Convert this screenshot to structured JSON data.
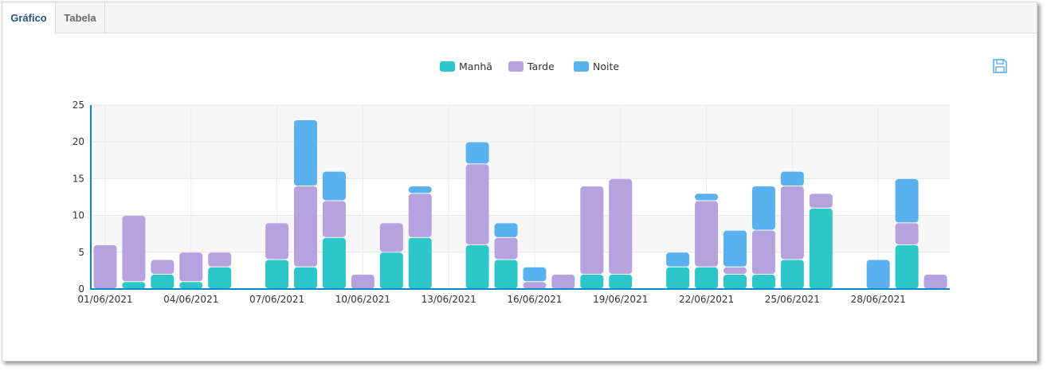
{
  "tabs": [
    {
      "label": "Gráfico",
      "active": true
    },
    {
      "label": "Tabela",
      "active": false
    }
  ],
  "toolbar": {
    "save_icon": "save-icon"
  },
  "chart_data": {
    "type": "bar",
    "stacked": true,
    "x": [
      "01/06/2021",
      "02/06/2021",
      "03/06/2021",
      "04/06/2021",
      "05/06/2021",
      "06/06/2021",
      "07/06/2021",
      "08/06/2021",
      "09/06/2021",
      "10/06/2021",
      "11/06/2021",
      "12/06/2021",
      "13/06/2021",
      "14/06/2021",
      "15/06/2021",
      "16/06/2021",
      "17/06/2021",
      "18/06/2021",
      "19/06/2021",
      "20/06/2021",
      "21/06/2021",
      "22/06/2021",
      "23/06/2021",
      "24/06/2021",
      "25/06/2021",
      "26/06/2021",
      "27/06/2021",
      "28/06/2021",
      "29/06/2021",
      "30/06/2021"
    ],
    "xticks": [
      "01/06/2021",
      "04/06/2021",
      "07/06/2021",
      "10/06/2021",
      "13/06/2021",
      "16/06/2021",
      "19/06/2021",
      "22/06/2021",
      "25/06/2021",
      "28/06/2021"
    ],
    "series": [
      {
        "name": "Manhã",
        "color": "#2ec7c9",
        "values": [
          0,
          1,
          2,
          1,
          3,
          0,
          4,
          3,
          7,
          0,
          5,
          7,
          0,
          6,
          4,
          0,
          0,
          2,
          2,
          0,
          3,
          3,
          2,
          2,
          4,
          11,
          0,
          0,
          6,
          0
        ]
      },
      {
        "name": "Tarde",
        "color": "#b6a2de",
        "values": [
          6,
          9,
          2,
          4,
          2,
          0,
          5,
          11,
          5,
          2,
          4,
          6,
          0,
          11,
          3,
          1,
          2,
          12,
          13,
          0,
          0,
          9,
          1,
          6,
          10,
          2,
          0,
          0,
          3,
          2
        ]
      },
      {
        "name": "Noite",
        "color": "#5ab1ef",
        "values": [
          0,
          0,
          0,
          0,
          0,
          0,
          0,
          9,
          4,
          0,
          0,
          1,
          0,
          3,
          2,
          2,
          0,
          0,
          0,
          0,
          2,
          1,
          5,
          6,
          2,
          0,
          0,
          4,
          6,
          0
        ]
      }
    ],
    "ylim": [
      0,
      25
    ],
    "yticks": [
      0,
      5,
      10,
      15,
      20,
      25
    ],
    "legend_position": "top-center",
    "grid": true
  }
}
